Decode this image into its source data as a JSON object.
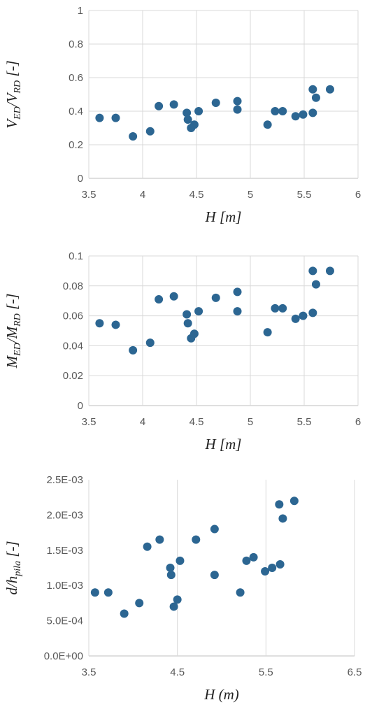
{
  "chart_data": [
    {
      "type": "scatter",
      "color": "#2c6692",
      "grid": "both",
      "xlabel": "H [m]",
      "ylabel": [
        "V",
        "ED",
        "/V",
        "RD",
        " [-]"
      ],
      "xlim": [
        3.5,
        6
      ],
      "xticks": [
        3.5,
        4,
        4.5,
        5,
        5.5,
        6
      ],
      "ylim": [
        0,
        1
      ],
      "yticks": [
        0,
        0.2,
        0.4,
        0.6,
        0.8,
        1
      ],
      "x": [
        3.6,
        3.75,
        3.91,
        4.07,
        4.15,
        4.29,
        4.41,
        4.42,
        4.45,
        4.48,
        4.52,
        4.68,
        4.88,
        4.88,
        5.16,
        5.23,
        5.3,
        5.42,
        5.49,
        5.58,
        5.58,
        5.61,
        5.74
      ],
      "values": [
        0.36,
        0.36,
        0.25,
        0.28,
        0.43,
        0.44,
        0.39,
        0.35,
        0.3,
        0.32,
        0.4,
        0.45,
        0.46,
        0.41,
        0.32,
        0.4,
        0.4,
        0.37,
        0.38,
        0.53,
        0.39,
        0.48,
        0.53
      ]
    },
    {
      "type": "scatter",
      "color": "#2c6692",
      "grid": "both",
      "xlabel": "H [m]",
      "ylabel": [
        "M",
        "ED",
        "/M",
        "RD",
        " [-]"
      ],
      "xlim": [
        3.5,
        6
      ],
      "xticks": [
        3.5,
        4,
        4.5,
        5,
        5.5,
        6
      ],
      "ylim": [
        0,
        0.1
      ],
      "yticks": [
        0,
        0.02,
        0.04,
        0.06,
        0.08,
        0.1
      ],
      "x": [
        3.6,
        3.75,
        3.91,
        4.07,
        4.15,
        4.29,
        4.41,
        4.42,
        4.45,
        4.48,
        4.52,
        4.68,
        4.88,
        4.88,
        5.16,
        5.23,
        5.3,
        5.42,
        5.49,
        5.58,
        5.58,
        5.61,
        5.74
      ],
      "values": [
        0.055,
        0.054,
        0.037,
        0.042,
        0.071,
        0.073,
        0.061,
        0.055,
        0.045,
        0.048,
        0.063,
        0.072,
        0.076,
        0.063,
        0.049,
        0.065,
        0.065,
        0.058,
        0.06,
        0.09,
        0.062,
        0.081,
        0.09
      ]
    },
    {
      "type": "scatter",
      "color": "#2c6692",
      "grid": "x",
      "xlabel": "H (m)",
      "ylabel": [
        "d/h",
        "pila",
        " [-]"
      ],
      "xlim": [
        3.5,
        6.5
      ],
      "xticks": [
        3.5,
        4.5,
        5.5,
        6.5
      ],
      "ylim": [
        0,
        0.0025
      ],
      "yticks": [
        {
          "value": 0,
          "label": "0.0E+00"
        },
        {
          "value": 0.0005,
          "label": "5.0E-04"
        },
        {
          "value": 0.001,
          "label": "1.0E-03"
        },
        {
          "value": 0.0015,
          "label": "1.5E-03"
        },
        {
          "value": 0.002,
          "label": "2.0E-03"
        },
        {
          "value": 0.0025,
          "label": "2.5E-03"
        }
      ],
      "x": [
        3.57,
        3.72,
        3.9,
        4.07,
        4.16,
        4.3,
        4.42,
        4.43,
        4.46,
        4.5,
        4.53,
        4.71,
        4.92,
        4.92,
        5.21,
        5.28,
        5.36,
        5.49,
        5.57,
        5.65,
        5.66,
        5.69,
        5.82
      ],
      "values": [
        0.0009,
        0.0009,
        0.0006,
        0.00075,
        0.00155,
        0.00165,
        0.00125,
        0.00115,
        0.0007,
        0.0008,
        0.00135,
        0.00165,
        0.0018,
        0.00115,
        0.0009,
        0.00135,
        0.0014,
        0.0012,
        0.00125,
        0.00215,
        0.0013,
        0.00195,
        0.0022
      ]
    }
  ]
}
